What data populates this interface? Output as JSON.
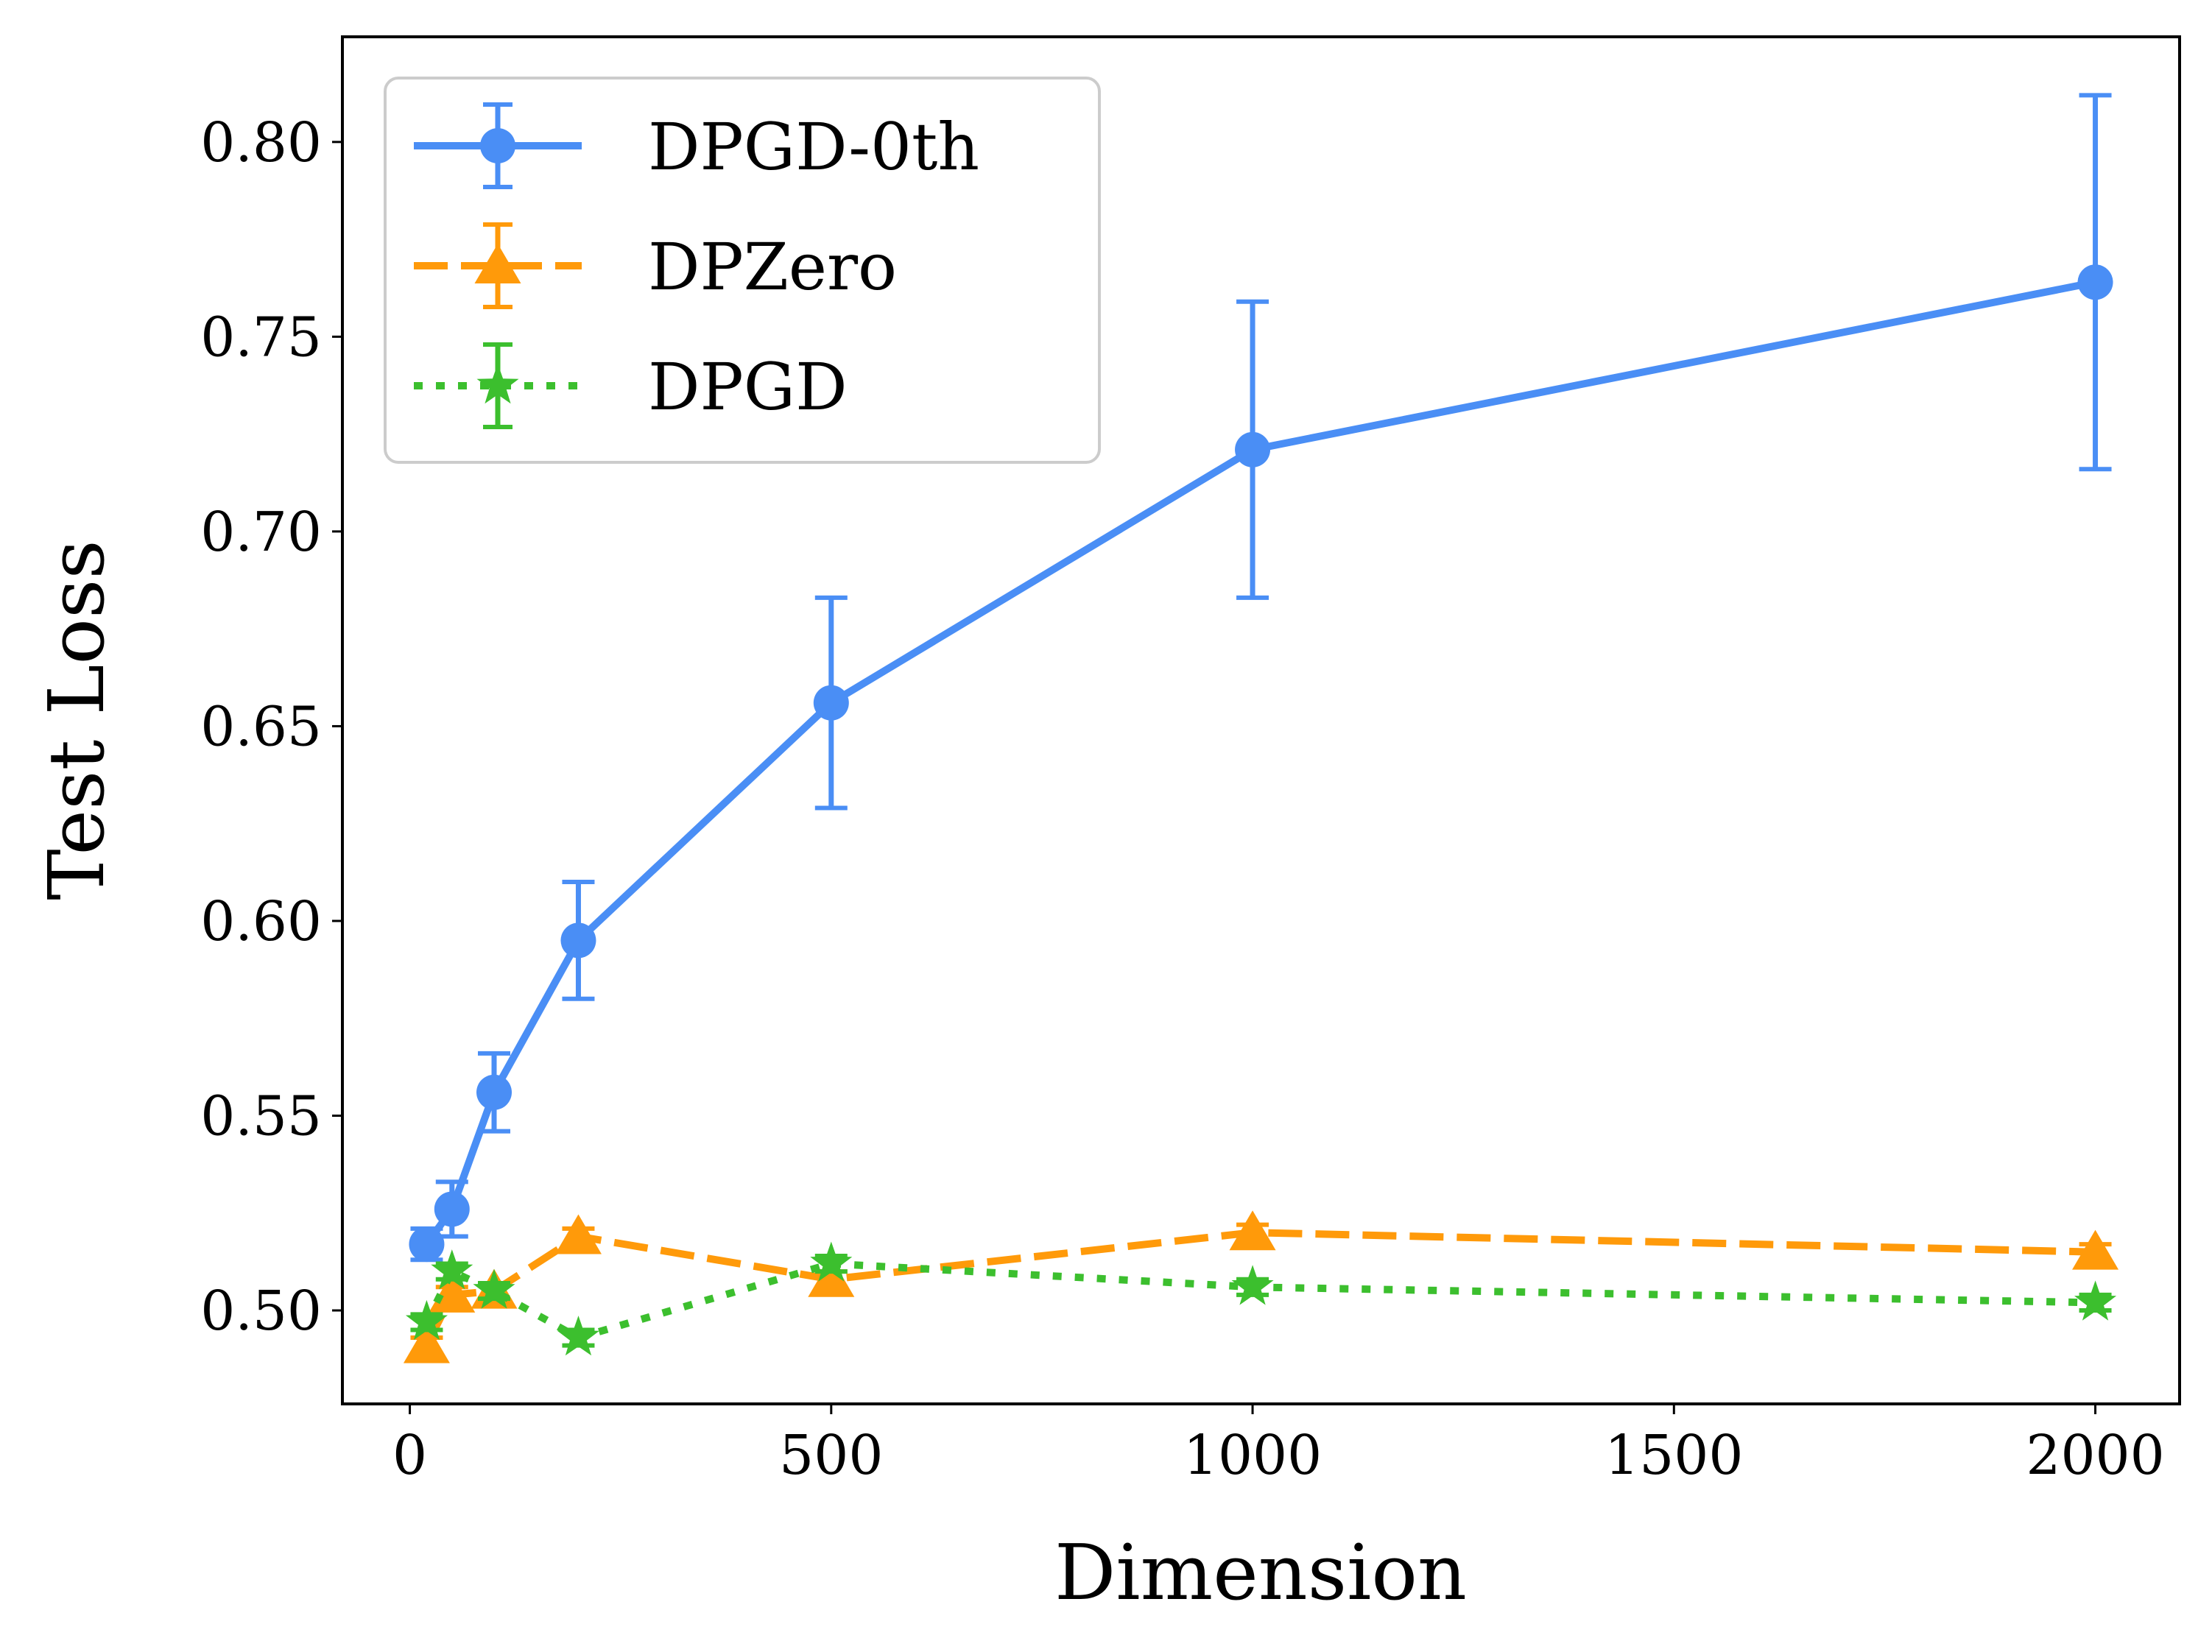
{
  "chart_data": {
    "type": "line",
    "title": "",
    "xlabel": "Dimension",
    "ylabel": "Test Loss",
    "xlim": [
      -80,
      2100
    ],
    "ylim": [
      0.476,
      0.827
    ],
    "xticks": [
      0,
      500,
      1000,
      1500,
      2000
    ],
    "xtick_labels": [
      "0",
      "500",
      "1000",
      "1500",
      "2000"
    ],
    "yticks": [
      0.5,
      0.55,
      0.6,
      0.65,
      0.7,
      0.75,
      0.8
    ],
    "ytick_labels": [
      "0.50",
      "0.55",
      "0.60",
      "0.65",
      "0.70",
      "0.75",
      "0.80"
    ],
    "grid": false,
    "legend_position": "top-left",
    "series": [
      {
        "name": "DPGD-0th",
        "color": "#4a8ef5",
        "line_style": "solid",
        "marker": "circle",
        "x": [
          20,
          50,
          100,
          200,
          500,
          1000,
          2000
        ],
        "y": [
          0.517,
          0.526,
          0.556,
          0.595,
          0.656,
          0.721,
          0.764
        ],
        "err": [
          0.004,
          0.007,
          0.01,
          0.015,
          0.027,
          0.038,
          0.048
        ]
      },
      {
        "name": "DPZero",
        "color": "#ff9a0a",
        "line_style": "dashed",
        "marker": "triangle",
        "x": [
          20,
          50,
          100,
          200,
          500,
          1000,
          2000
        ],
        "y": [
          0.491,
          0.504,
          0.505,
          0.519,
          0.508,
          0.52,
          0.515
        ],
        "err": [
          0.002,
          0.002,
          0.002,
          0.002,
          0.002,
          0.002,
          0.002
        ]
      },
      {
        "name": "DPGD",
        "color": "#3cbf2e",
        "line_style": "dotted",
        "marker": "star",
        "x": [
          20,
          50,
          100,
          200,
          500,
          1000,
          2000
        ],
        "y": [
          0.497,
          0.51,
          0.505,
          0.493,
          0.512,
          0.506,
          0.502
        ],
        "err": [
          0.002,
          0.002,
          0.002,
          0.002,
          0.002,
          0.002,
          0.002
        ]
      }
    ]
  }
}
